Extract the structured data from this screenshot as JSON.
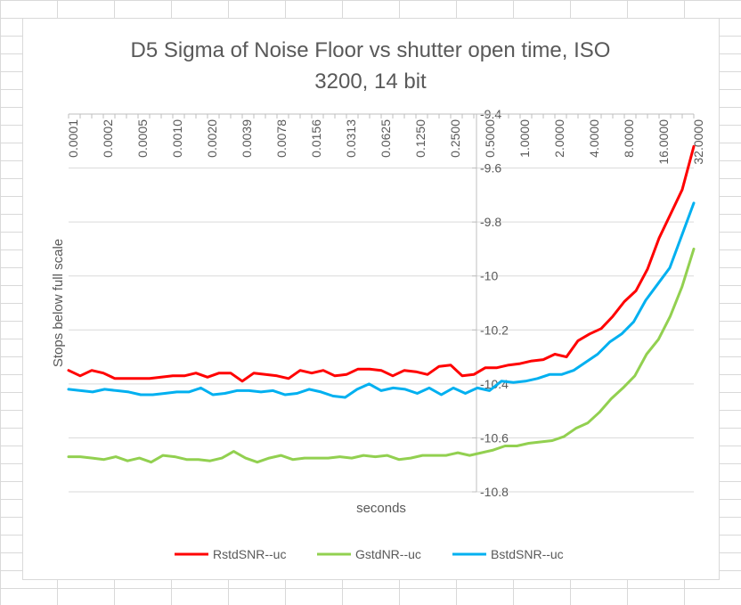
{
  "chart_data": {
    "type": "line",
    "title_line1": "D5 Sigma of Noise Floor vs shutter open time, ISO",
    "title_line2": "3200, 14 bit",
    "xlabel": "seconds",
    "ylabel": "Stops below full scale",
    "ylim": [
      -10.8,
      -9.4
    ],
    "y_ticks": [
      "-9.4",
      "-9.6",
      "-9.8",
      "-10",
      "-10.2",
      "-10.4",
      "-10.6",
      "-10.8"
    ],
    "x_tick_labels": [
      "0.0001",
      "0.0002",
      "0.0005",
      "0.0010",
      "0.0020",
      "0.0039",
      "0.0078",
      "0.0156",
      "0.0313",
      "0.0625",
      "0.1250",
      "0.2500",
      "0.5000",
      "1.0000",
      "2.0000",
      "4.0000",
      "8.0000",
      "16.0000",
      "32.0000"
    ],
    "x_axis_position": "top",
    "legend_position": "bottom",
    "series": [
      {
        "name": "RstdSNR--uc",
        "color": "#ff0000",
        "values": [
          -10.35,
          -10.37,
          -10.35,
          -10.36,
          -10.38,
          -10.38,
          -10.38,
          -10.38,
          -10.375,
          -10.37,
          -10.37,
          -10.36,
          -10.375,
          -10.36,
          -10.36,
          -10.39,
          -10.36,
          -10.365,
          -10.37,
          -10.38,
          -10.35,
          -10.36,
          -10.35,
          -10.37,
          -10.365,
          -10.345,
          -10.345,
          -10.35,
          -10.37,
          -10.35,
          -10.355,
          -10.365,
          -10.335,
          -10.33,
          -10.37,
          -10.365,
          -10.34,
          -10.34,
          -10.33,
          -10.325,
          -10.315,
          -10.31,
          -10.29,
          -10.3,
          -10.24,
          -10.215,
          -10.195,
          -10.15,
          -10.095,
          -10.055,
          -9.975,
          -9.86,
          -9.77,
          -9.68,
          -9.52
        ]
      },
      {
        "name": "GstdNR--uc",
        "color": "#92d050",
        "values": [
          -10.67,
          -10.67,
          -10.675,
          -10.68,
          -10.67,
          -10.685,
          -10.675,
          -10.69,
          -10.665,
          -10.67,
          -10.68,
          -10.68,
          -10.685,
          -10.675,
          -10.65,
          -10.675,
          -10.69,
          -10.675,
          -10.665,
          -10.68,
          -10.675,
          -10.675,
          -10.675,
          -10.67,
          -10.675,
          -10.665,
          -10.67,
          -10.665,
          -10.68,
          -10.675,
          -10.665,
          -10.665,
          -10.665,
          -10.655,
          -10.665,
          -10.655,
          -10.645,
          -10.63,
          -10.63,
          -10.62,
          -10.615,
          -10.61,
          -10.595,
          -10.565,
          -10.545,
          -10.505,
          -10.455,
          -10.415,
          -10.37,
          -10.29,
          -10.235,
          -10.15,
          -10.04,
          -9.9
        ]
      },
      {
        "name": "BstdSNR--uc",
        "color": "#00b0f0",
        "values": [
          -10.42,
          -10.425,
          -10.43,
          -10.42,
          -10.425,
          -10.43,
          -10.44,
          -10.44,
          -10.435,
          -10.43,
          -10.43,
          -10.415,
          -10.44,
          -10.435,
          -10.425,
          -10.425,
          -10.43,
          -10.425,
          -10.44,
          -10.435,
          -10.42,
          -10.43,
          -10.445,
          -10.45,
          -10.42,
          -10.4,
          -10.425,
          -10.415,
          -10.42,
          -10.435,
          -10.415,
          -10.44,
          -10.415,
          -10.435,
          -10.415,
          -10.425,
          -10.39,
          -10.395,
          -10.39,
          -10.38,
          -10.365,
          -10.365,
          -10.35,
          -10.32,
          -10.29,
          -10.245,
          -10.215,
          -10.17,
          -10.09,
          -10.03,
          -9.97,
          -9.85,
          -9.73
        ]
      }
    ]
  }
}
